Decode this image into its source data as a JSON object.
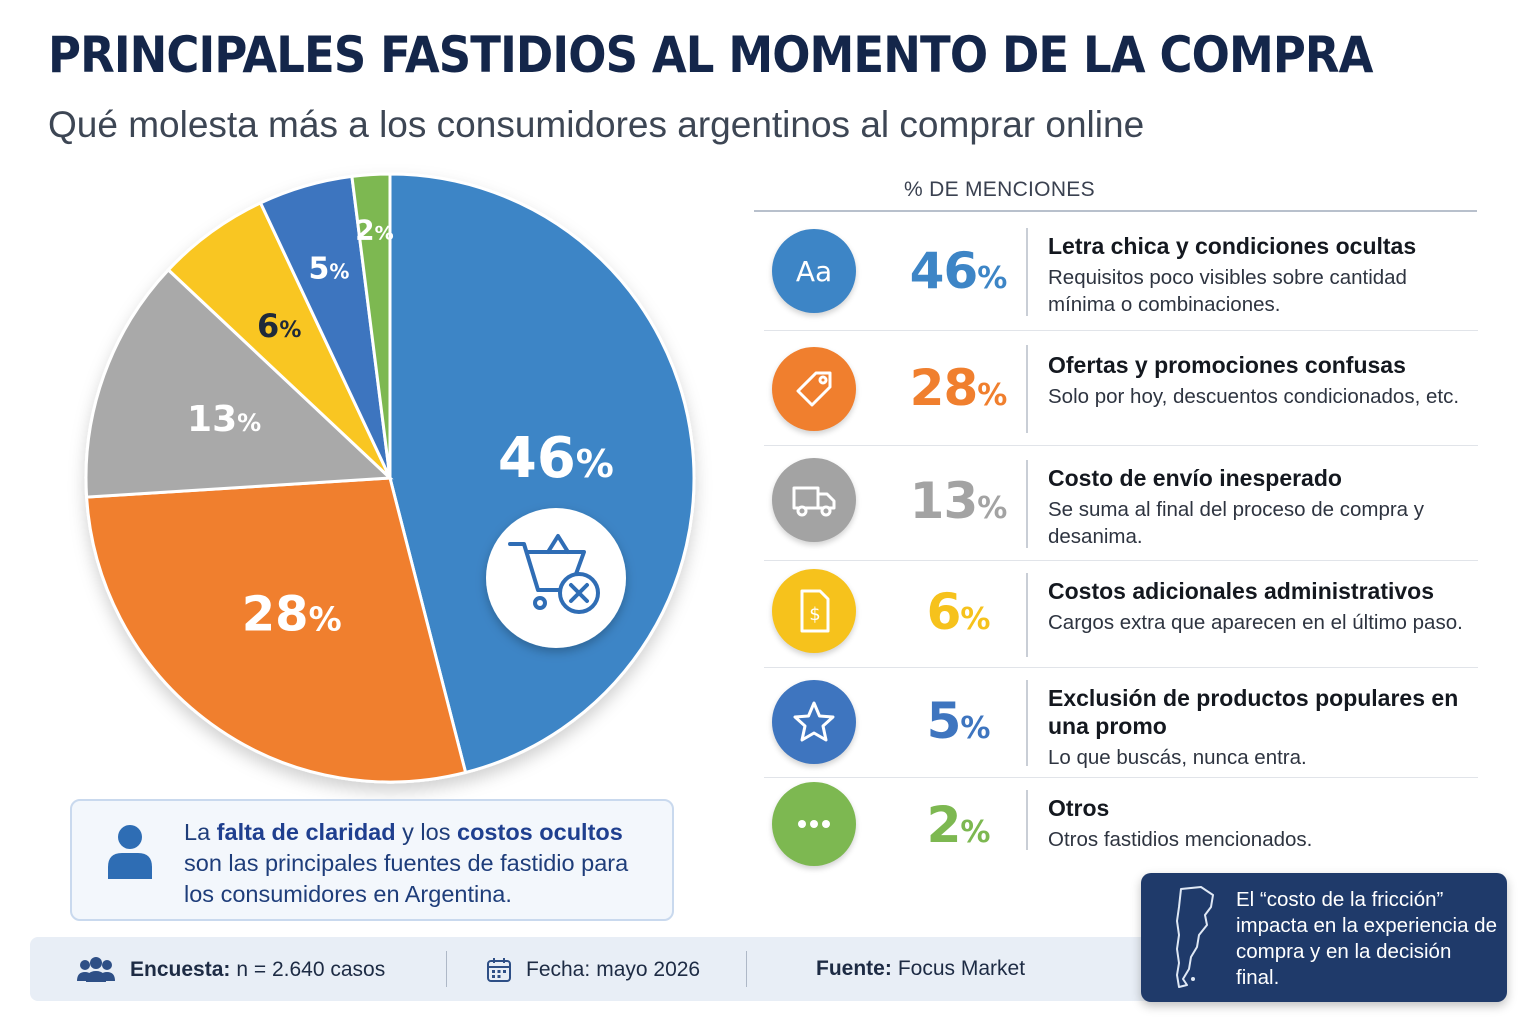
{
  "title": "PRINCIPALES FASTIDIOS AL MOMENTO DE LA COMPRA",
  "subtitle": "Qué molesta más a los consumidores argentinos al comprar online",
  "table_header": "% DE MENCIONES",
  "chart_data": {
    "type": "pie",
    "title": "PRINCIPALES FASTIDIOS AL MOMENTO DE LA COMPRA",
    "unit": "%",
    "slices": [
      {
        "name": "Letra chica y condiciones ocultas",
        "value": 46,
        "label": "46",
        "color": "#3d85c6"
      },
      {
        "name": "Ofertas y promociones confusas",
        "value": 28,
        "label": "28",
        "color": "#f07f2e"
      },
      {
        "name": "Costo de envío inesperado",
        "value": 13,
        "label": "13",
        "color": "#a9a9a9"
      },
      {
        "name": "Costos adicionales administrativos",
        "value": 6,
        "label": "6",
        "color": "#f9c623"
      },
      {
        "name": "Exclusión de productos populares en una promo",
        "value": 5,
        "label": "5",
        "color": "#3e75bf"
      },
      {
        "name": "Otros",
        "value": 2,
        "label": "2",
        "color": "#7db851"
      }
    ]
  },
  "items": [
    {
      "pct": "46",
      "sign": "%",
      "title": "Letra chica y condiciones ocultas",
      "desc": "Requisitos poco visibles sobre cantidad mínima o combinaciones.",
      "color": "#3d85c6",
      "icon": "text-aa-icon"
    },
    {
      "pct": "28",
      "sign": "%",
      "title": "Ofertas y promociones confusas",
      "desc": "Solo por hoy, descuentos condicionados, etc.",
      "color": "#f07f2e",
      "icon": "price-tag-icon"
    },
    {
      "pct": "13",
      "sign": "%",
      "title": "Costo de envío inesperado",
      "desc": "Se suma al final del proceso de compra y desanima.",
      "color": "#a3a3a3",
      "icon": "delivery-truck-icon"
    },
    {
      "pct": "6",
      "sign": "%",
      "title": "Costos adicionales administrativos",
      "desc": "Cargos extra que aparecen en el último paso.",
      "color": "#f6c21c",
      "icon": "invoice-dollar-icon"
    },
    {
      "pct": "5",
      "sign": "%",
      "title": "Exclusión de productos populares en una promo",
      "desc": "Lo que buscás, nunca entra.",
      "color": "#3e75bf",
      "icon": "star-icon"
    },
    {
      "pct": "2",
      "sign": "%",
      "title": "Otros",
      "desc": "Otros fastidios mencionados.",
      "color": "#7db851",
      "icon": "more-dots-icon"
    }
  ],
  "insight": {
    "t1": "La ",
    "b1": "falta de claridad",
    "t2": " y los ",
    "b2": "costos ocultos",
    "t3": " son las principales fuentes de fastidio para los consumidores en Argentina."
  },
  "footer": {
    "survey_label": "Encuesta:",
    "survey_value": "n = 2.640 casos",
    "date_label": "Fecha:",
    "date_value": "mayo 2026",
    "source_label": "Fuente:",
    "source_value": "Focus Market"
  },
  "note": "El “costo de la fricción” impacta en la experiencia de compra y en la decisión final."
}
